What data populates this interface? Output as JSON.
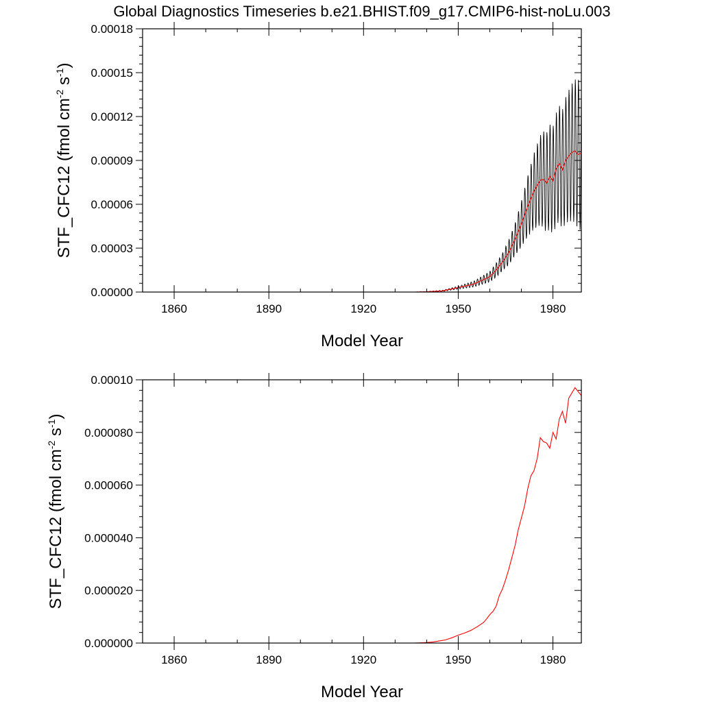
{
  "title": "Global Diagnostics Timeseries b.e21.BHIST.f09_g17.CMIP6-hist-noLu.003",
  "colors": {
    "monthly": "#000000",
    "annual": "#ff0000",
    "axes": "#000000",
    "background": "#ffffff"
  },
  "chart_data": [
    {
      "type": "line",
      "xlabel": "Model Year",
      "ylabel": "STF_CFC12 (fmol cm",
      "ylabel_sup1": "-2",
      "ylabel_mid": " s",
      "ylabel_sup2": "-1",
      "ylabel_end": ")",
      "xlim": [
        1850,
        1989
      ],
      "ylim": [
        0,
        0.00018
      ],
      "xticks": [
        1860,
        1890,
        1920,
        1950,
        1980
      ],
      "xtick_labels": [
        "1860",
        "1890",
        "1920",
        "1950",
        "1980"
      ],
      "yticks": [
        0,
        3e-05,
        6e-05,
        9e-05,
        0.00012,
        0.00015,
        0.00018
      ],
      "ytick_labels": [
        "0.00000",
        "0.00003",
        "0.00006",
        "0.00009",
        "0.00012",
        "0.00015",
        "0.00018"
      ],
      "grid": false,
      "series": [
        {
          "role": "monthly",
          "color": "#000000",
          "annual_mean_x": [
            1936,
            1940,
            1945,
            1950,
            1955,
            1960,
            1962,
            1964,
            1966,
            1968,
            1970,
            1972,
            1974,
            1976,
            1977,
            1978,
            1979,
            1980,
            1981,
            1982,
            1983,
            1984,
            1985,
            1986,
            1987,
            1988,
            1989
          ],
          "annual_mean_y": [
            0,
            2e-07,
            8e-07,
            3e-06,
            5.5e-06,
            1.05e-05,
            1.5e-05,
            2.05e-05,
            2.7e-05,
            3.6e-05,
            4.65e-05,
            5.85e-05,
            6.9e-05,
            7.65e-05,
            7.7e-05,
            7.45e-05,
            7.9e-05,
            7.6e-05,
            8.4e-05,
            8.8e-05,
            8.35e-05,
            9e-05,
            9.3e-05,
            9.55e-05,
            9.65e-05,
            9.4e-05,
            9.5e-05
          ],
          "seasonal_amplitude_x": [
            1936,
            1945,
            1950,
            1955,
            1960,
            1964,
            1968,
            1971,
            1974,
            1977,
            1980,
            1983,
            1986,
            1989
          ],
          "seasonal_amplitude_y": [
            0,
            4e-07,
            1e-06,
            2e-06,
            3.5e-06,
            6e-06,
            1.1e-05,
            1.8e-05,
            2.6e-05,
            3.3e-05,
            3.7e-05,
            4.1e-05,
            4.7e-05,
            5.3e-05
          ]
        },
        {
          "role": "annual",
          "color": "#ff0000",
          "x": [
            1936,
            1940,
            1945,
            1950,
            1955,
            1960,
            1962,
            1964,
            1966,
            1968,
            1970,
            1972,
            1974,
            1976,
            1977,
            1978,
            1979,
            1980,
            1981,
            1982,
            1983,
            1984,
            1985,
            1986,
            1987,
            1988,
            1989
          ],
          "y": [
            0,
            2e-07,
            8e-07,
            3e-06,
            5.5e-06,
            1.05e-05,
            1.5e-05,
            2.05e-05,
            2.7e-05,
            3.6e-05,
            4.65e-05,
            5.85e-05,
            6.9e-05,
            7.65e-05,
            7.7e-05,
            7.45e-05,
            7.9e-05,
            7.6e-05,
            8.4e-05,
            8.8e-05,
            8.35e-05,
            9e-05,
            9.3e-05,
            9.55e-05,
            9.65e-05,
            9.4e-05,
            9.5e-05
          ]
        }
      ]
    },
    {
      "type": "line",
      "xlabel": "Model Year",
      "ylabel": "STF_CFC12 (fmol cm",
      "ylabel_sup1": "-2",
      "ylabel_mid": " s",
      "ylabel_sup2": "-1",
      "ylabel_end": ")",
      "xlim": [
        1850,
        1989
      ],
      "ylim": [
        0,
        0.0001
      ],
      "xticks": [
        1860,
        1890,
        1920,
        1950,
        1980
      ],
      "xtick_labels": [
        "1860",
        "1890",
        "1920",
        "1950",
        "1980"
      ],
      "yticks": [
        0,
        2e-05,
        4e-05,
        6e-05,
        8e-05,
        0.0001
      ],
      "ytick_labels": [
        "0.000000",
        "0.000020",
        "0.000040",
        "0.000060",
        "0.000080",
        "0.00010"
      ],
      "grid": false,
      "series": [
        {
          "role": "annual",
          "color": "#ff0000",
          "x": [
            1936,
            1938,
            1940,
            1942,
            1944,
            1946,
            1948,
            1950,
            1952,
            1954,
            1956,
            1958,
            1959,
            1960,
            1961,
            1962,
            1963,
            1964,
            1965,
            1966,
            1967,
            1968,
            1969,
            1970,
            1971,
            1972,
            1973,
            1974,
            1975,
            1976,
            1977,
            1978,
            1979,
            1980,
            1981,
            1982,
            1983,
            1984,
            1985,
            1986,
            1987,
            1988,
            1989
          ],
          "y": [
            0,
            1e-07,
            2e-07,
            4e-07,
            8e-07,
            1.2e-06,
            2e-06,
            3e-06,
            3.8e-06,
            4.8e-06,
            6.2e-06,
            7.8e-06,
            9.2e-06,
            1.08e-05,
            1.2e-05,
            1.4e-05,
            1.8e-05,
            2.05e-05,
            2.4e-05,
            2.8e-05,
            3.25e-05,
            3.7e-05,
            4.3e-05,
            4.75e-05,
            5.2e-05,
            5.85e-05,
            6.35e-05,
            6.55e-05,
            7e-05,
            7.8e-05,
            7.65e-05,
            7.6e-05,
            7.4e-05,
            8e-05,
            7.75e-05,
            8.5e-05,
            8.8e-05,
            8.35e-05,
            9.3e-05,
            9.5e-05,
            9.7e-05,
            9.55e-05,
            9.4e-05
          ]
        }
      ]
    }
  ]
}
